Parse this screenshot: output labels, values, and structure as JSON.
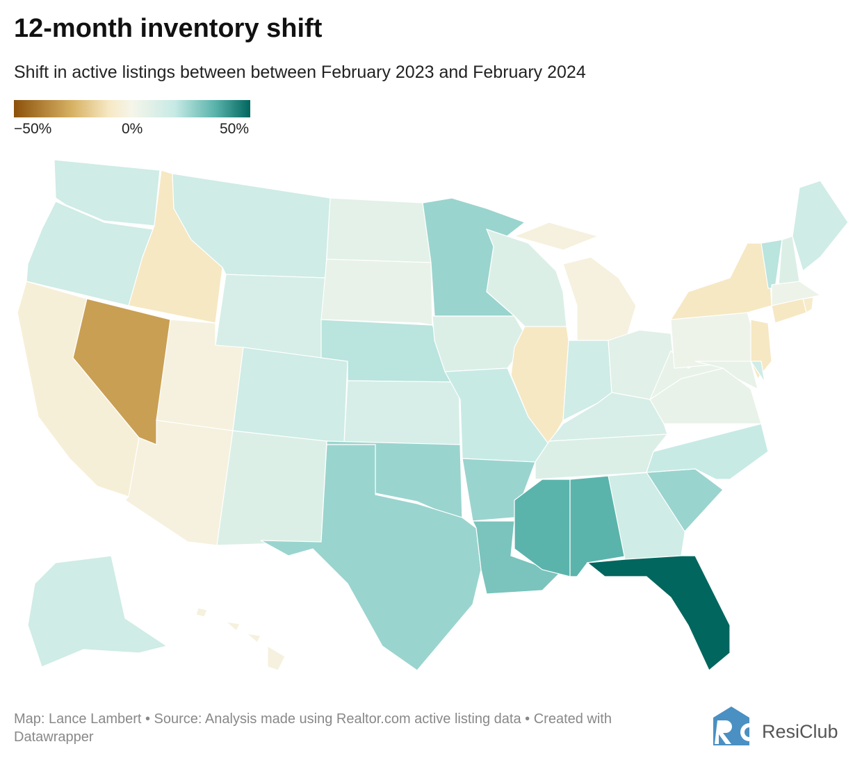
{
  "title": "12-month inventory shift",
  "subtitle": "Shift in active listings between between February 2023 and February 2024",
  "legend": {
    "min_label": "−50%",
    "mid_label": "0%",
    "max_label": "50%",
    "colors": [
      "#8c510a",
      "#d8b365",
      "#f6e8c3",
      "#f5f5ea",
      "#c7eae5",
      "#5ab4ac",
      "#01665e"
    ]
  },
  "footer": {
    "text": "Map: Lance Lambert • Source: Analysis made using Realtor.com active listing data • Created with Datawrapper"
  },
  "logo": {
    "text": "ResiClub",
    "mark": "RC",
    "color": "#4a90c2"
  },
  "chart_data": {
    "type": "choropleth",
    "value_unit": "%",
    "scale_range": [
      -50,
      50
    ],
    "states": [
      {
        "id": "WA",
        "value": 15
      },
      {
        "id": "OR",
        "value": 15
      },
      {
        "id": "CA",
        "value": -5
      },
      {
        "id": "NV",
        "value": -30
      },
      {
        "id": "ID",
        "value": -10
      },
      {
        "id": "MT",
        "value": 15
      },
      {
        "id": "WY",
        "value": 12
      },
      {
        "id": "UT",
        "value": -3
      },
      {
        "id": "AZ",
        "value": -3
      },
      {
        "id": "CO",
        "value": 15
      },
      {
        "id": "NM",
        "value": 10
      },
      {
        "id": "ND",
        "value": 7
      },
      {
        "id": "SD",
        "value": 5
      },
      {
        "id": "NE",
        "value": 20
      },
      {
        "id": "KS",
        "value": 12
      },
      {
        "id": "OK",
        "value": 25
      },
      {
        "id": "TX",
        "value": 25
      },
      {
        "id": "MN",
        "value": 25
      },
      {
        "id": "IA",
        "value": 10
      },
      {
        "id": "MO",
        "value": 18
      },
      {
        "id": "AR",
        "value": 25
      },
      {
        "id": "LA",
        "value": 30
      },
      {
        "id": "WI",
        "value": 10
      },
      {
        "id": "IL",
        "value": -10
      },
      {
        "id": "MI",
        "value": -3
      },
      {
        "id": "IN",
        "value": 15
      },
      {
        "id": "OH",
        "value": 8
      },
      {
        "id": "KY",
        "value": 12
      },
      {
        "id": "TN",
        "value": 10
      },
      {
        "id": "MS",
        "value": 35
      },
      {
        "id": "AL",
        "value": 35
      },
      {
        "id": "GA",
        "value": 15
      },
      {
        "id": "FL",
        "value": 50
      },
      {
        "id": "SC",
        "value": 25
      },
      {
        "id": "NC",
        "value": 18
      },
      {
        "id": "VA",
        "value": 5
      },
      {
        "id": "WV",
        "value": 5
      },
      {
        "id": "PA",
        "value": 3
      },
      {
        "id": "NY",
        "value": -10
      },
      {
        "id": "VT",
        "value": 20
      },
      {
        "id": "NH",
        "value": 10
      },
      {
        "id": "ME",
        "value": 15
      },
      {
        "id": "MA",
        "value": 3
      },
      {
        "id": "RI",
        "value": -8
      },
      {
        "id": "CT",
        "value": -10
      },
      {
        "id": "NJ",
        "value": -10
      },
      {
        "id": "DE",
        "value": 15
      },
      {
        "id": "MD",
        "value": 5
      },
      {
        "id": "AK",
        "value": 15
      },
      {
        "id": "HI",
        "value": -3
      }
    ]
  }
}
